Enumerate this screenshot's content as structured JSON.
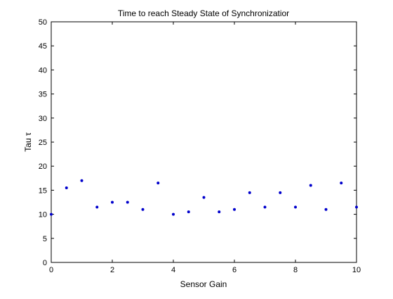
{
  "chart_data": {
    "type": "scatter",
    "title": "Time to reach Steady State of Synchronizatior",
    "xlabel": "Sensor Gain",
    "ylabel": "Tau τ",
    "xlim": [
      0,
      10
    ],
    "ylim": [
      0,
      50
    ],
    "xticks": [
      0,
      2,
      4,
      6,
      8,
      10
    ],
    "yticks": [
      0,
      5,
      10,
      15,
      20,
      25,
      30,
      35,
      40,
      45,
      50
    ],
    "grid": false,
    "legend": "none",
    "marker_color": "#0000cc",
    "series": [
      {
        "x": [
          0,
          0.5,
          1,
          1.5,
          2,
          2.5,
          3,
          3.5,
          4,
          4.5,
          5,
          5.5,
          6,
          6.5,
          7,
          7.5,
          8,
          8.5,
          9,
          9.5,
          10
        ],
        "y": [
          10,
          15.5,
          17,
          11.5,
          12.5,
          12.5,
          11,
          16.5,
          10,
          10.5,
          13.5,
          10.5,
          11,
          14.5,
          11.5,
          14.5,
          11.5,
          16,
          11,
          16.5,
          11.5
        ]
      }
    ]
  }
}
